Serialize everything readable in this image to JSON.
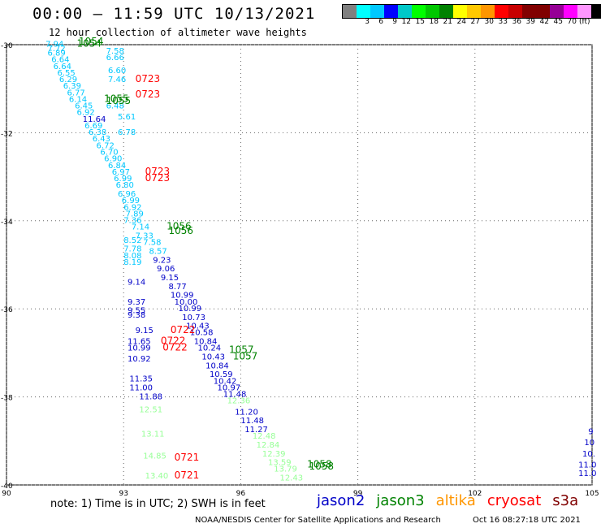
{
  "title": "00:00 – 11:59 UTC 10/13/2021",
  "subtitle": "12 hour collection of altimeter wave heights",
  "colorbar": {
    "colors": [
      "#808080",
      "#00ffff",
      "#00c8ff",
      "#0000ff",
      "#00c8c8",
      "#00ff00",
      "#00c800",
      "#008200",
      "#ffff00",
      "#ffc800",
      "#ff9600",
      "#ff0000",
      "#c80000",
      "#820000",
      "#800000",
      "#960096",
      "#ff00ff",
      "#ff96ff",
      "#000000"
    ],
    "labels": [
      "3",
      "6",
      "9",
      "12",
      "15",
      "18",
      "21",
      "24",
      "27",
      "30",
      "33",
      "36",
      "39",
      "42",
      "45",
      "70"
    ],
    "unit": "(ft)"
  },
  "axes": {
    "lat_labels": [
      "-30",
      "-32",
      "-34",
      "-36",
      "-38",
      "-40"
    ],
    "lon_labels": [
      "90",
      "93",
      "96",
      "99",
      "102",
      "105"
    ]
  },
  "legend": [
    {
      "name": "jason2",
      "color": "#0000c8"
    },
    {
      "name": "jason3",
      "color": "#008200"
    },
    {
      "name": "altika",
      "color": "#ff9600"
    },
    {
      "name": "cryosat",
      "color": "#ff0000"
    },
    {
      "name": "s3a",
      "color": "#800000"
    }
  ],
  "note": "note: 1) Time is in UTC; 2) SWH is in feet",
  "credit": "NOAA/NESDIS Center for Satellite Applications and Research",
  "timestamp": "Oct 16 08:27:18 UTC 2021",
  "times": [
    {
      "text": "1054",
      "color": "#008200",
      "lon": 91.8,
      "lat": -30.05
    },
    {
      "text": "1054",
      "color": "#008200",
      "lon": 91.85,
      "lat": -30.0
    },
    {
      "text": "0723",
      "color": "#ff0000",
      "lon": 93.3,
      "lat": -30.85
    },
    {
      "text": "0723",
      "color": "#ff0000",
      "lon": 93.3,
      "lat": -31.2
    },
    {
      "text": "1055",
      "color": "#008200",
      "lon": 92.5,
      "lat": -31.3
    },
    {
      "text": "1055",
      "color": "#008200",
      "lon": 92.55,
      "lat": -31.35
    },
    {
      "text": "0723",
      "color": "#ff0000",
      "lon": 93.55,
      "lat": -32.95
    },
    {
      "text": "0723",
      "color": "#ff0000",
      "lon": 93.55,
      "lat": -33.1
    },
    {
      "text": "1056",
      "color": "#008200",
      "lon": 94.1,
      "lat": -34.2
    },
    {
      "text": "1056",
      "color": "#008200",
      "lon": 94.15,
      "lat": -34.3
    },
    {
      "text": "0722",
      "color": "#ff0000",
      "lon": 94.2,
      "lat": -36.55
    },
    {
      "text": "0722",
      "color": "#ff0000",
      "lon": 93.95,
      "lat": -36.8
    },
    {
      "text": "0722",
      "color": "#ff0000",
      "lon": 94.0,
      "lat": -36.95
    },
    {
      "text": "1057",
      "color": "#008200",
      "lon": 95.7,
      "lat": -37.0
    },
    {
      "text": "1057",
      "color": "#008200",
      "lon": 95.8,
      "lat": -37.15
    },
    {
      "text": "0721",
      "color": "#ff0000",
      "lon": 94.3,
      "lat": -39.45
    },
    {
      "text": "0721",
      "color": "#ff0000",
      "lon": 94.3,
      "lat": -39.85
    },
    {
      "text": "1058",
      "color": "#008200",
      "lon": 97.7,
      "lat": -39.6
    },
    {
      "text": "1058",
      "color": "#008200",
      "lon": 97.75,
      "lat": -39.65
    }
  ],
  "values": [
    {
      "text": "7.94",
      "color": "#00c8ff",
      "lon": 91.0,
      "lat": -30.05
    },
    {
      "text": "7.72",
      "color": "#00c8ff",
      "lon": 91.05,
      "lat": -30.15
    },
    {
      "text": "6.89",
      "color": "#00c8ff",
      "lon": 91.05,
      "lat": -30.25
    },
    {
      "text": "6.64",
      "color": "#00c8ff",
      "lon": 91.15,
      "lat": -30.4
    },
    {
      "text": "6.64",
      "color": "#00c8ff",
      "lon": 91.2,
      "lat": -30.55
    },
    {
      "text": "6.55",
      "color": "#00c8ff",
      "lon": 91.3,
      "lat": -30.7
    },
    {
      "text": "6.29",
      "color": "#00c8ff",
      "lon": 91.35,
      "lat": -30.85
    },
    {
      "text": "6.39",
      "color": "#00c8ff",
      "lon": 91.45,
      "lat": -31.0
    },
    {
      "text": "6.77",
      "color": "#00c8ff",
      "lon": 91.55,
      "lat": -31.15
    },
    {
      "text": "6.14",
      "color": "#00c8ff",
      "lon": 91.6,
      "lat": -31.3
    },
    {
      "text": "6.45",
      "color": "#00c8ff",
      "lon": 91.75,
      "lat": -31.45
    },
    {
      "text": "6.92",
      "color": "#00c8ff",
      "lon": 91.8,
      "lat": -31.6
    },
    {
      "text": "11.64",
      "color": "#0000c8",
      "lon": 91.95,
      "lat": -31.75
    },
    {
      "text": "6.69",
      "color": "#00c8ff",
      "lon": 92.0,
      "lat": -31.9
    },
    {
      "text": "6.38",
      "color": "#00c8ff",
      "lon": 92.1,
      "lat": -32.05
    },
    {
      "text": "6.43",
      "color": "#00c8ff",
      "lon": 92.2,
      "lat": -32.2
    },
    {
      "text": "6.72",
      "color": "#00c8ff",
      "lon": 92.3,
      "lat": -32.35
    },
    {
      "text": "6.70",
      "color": "#00c8ff",
      "lon": 92.4,
      "lat": -32.5
    },
    {
      "text": "6.90",
      "color": "#00c8ff",
      "lon": 92.5,
      "lat": -32.65
    },
    {
      "text": "6.84",
      "color": "#00c8ff",
      "lon": 92.6,
      "lat": -32.8
    },
    {
      "text": "6.97",
      "color": "#00c8ff",
      "lon": 92.7,
      "lat": -32.95
    },
    {
      "text": "6.99",
      "color": "#00c8ff",
      "lon": 92.75,
      "lat": -33.1
    },
    {
      "text": "6.80",
      "color": "#00c8ff",
      "lon": 92.8,
      "lat": -33.25
    },
    {
      "text": "6.96",
      "color": "#00c8ff",
      "lon": 92.85,
      "lat": -33.45
    },
    {
      "text": "6.99",
      "color": "#00c8ff",
      "lon": 92.95,
      "lat": -33.6
    },
    {
      "text": "6.92",
      "color": "#00c8ff",
      "lon": 93.0,
      "lat": -33.75
    },
    {
      "text": "7.89",
      "color": "#00c8ff",
      "lon": 93.05,
      "lat": -33.9
    },
    {
      "text": "7.36",
      "color": "#00c8ff",
      "lon": 93.0,
      "lat": -34.05
    },
    {
      "text": "7.14",
      "color": "#00c8ff",
      "lon": 93.2,
      "lat": -34.2
    },
    {
      "text": "7.33",
      "color": "#00c8ff",
      "lon": 93.3,
      "lat": -34.4
    },
    {
      "text": "7.58",
      "color": "#00c8ff",
      "lon": 93.5,
      "lat": -34.55
    },
    {
      "text": "8.57",
      "color": "#00c8ff",
      "lon": 93.65,
      "lat": -34.75
    },
    {
      "text": "9.23",
      "color": "#0000c8",
      "lon": 93.75,
      "lat": -34.95
    },
    {
      "text": "9.06",
      "color": "#0000c8",
      "lon": 93.85,
      "lat": -35.15
    },
    {
      "text": "9.15",
      "color": "#0000c8",
      "lon": 93.95,
      "lat": -35.35
    },
    {
      "text": "8.77",
      "color": "#0000c8",
      "lon": 94.15,
      "lat": -35.55
    },
    {
      "text": "10.99",
      "color": "#0000c8",
      "lon": 94.2,
      "lat": -35.75
    },
    {
      "text": "10.00",
      "color": "#0000c8",
      "lon": 94.3,
      "lat": -35.9
    },
    {
      "text": "10.99",
      "color": "#0000c8",
      "lon": 94.4,
      "lat": -36.05
    },
    {
      "text": "10.73",
      "color": "#0000c8",
      "lon": 94.5,
      "lat": -36.25
    },
    {
      "text": "10.43",
      "color": "#0000c8",
      "lon": 94.6,
      "lat": -36.45
    },
    {
      "text": "10.58",
      "color": "#0000c8",
      "lon": 94.7,
      "lat": -36.6
    },
    {
      "text": "10.84",
      "color": "#0000c8",
      "lon": 94.8,
      "lat": -36.8
    },
    {
      "text": "10.24",
      "color": "#0000c8",
      "lon": 94.9,
      "lat": -36.95
    },
    {
      "text": "10.43",
      "color": "#0000c8",
      "lon": 95.0,
      "lat": -37.15
    },
    {
      "text": "10.84",
      "color": "#0000c8",
      "lon": 95.1,
      "lat": -37.35
    },
    {
      "text": "10.59",
      "color": "#0000c8",
      "lon": 95.2,
      "lat": -37.55
    },
    {
      "text": "10.42",
      "color": "#0000c8",
      "lon": 95.3,
      "lat": -37.7
    },
    {
      "text": "10.97",
      "color": "#0000c8",
      "lon": 95.4,
      "lat": -37.85
    },
    {
      "text": "11.48",
      "color": "#0000c8",
      "lon": 95.55,
      "lat": -38.0
    },
    {
      "text": "12.36",
      "color": "#96ff96",
      "lon": 95.65,
      "lat": -38.15
    },
    {
      "text": "11.20",
      "color": "#0000c8",
      "lon": 95.85,
      "lat": -38.4
    },
    {
      "text": "11.48",
      "color": "#0000c8",
      "lon": 96.0,
      "lat": -38.6
    },
    {
      "text": "11.27",
      "color": "#0000c8",
      "lon": 96.1,
      "lat": -38.8
    },
    {
      "text": "12.48",
      "color": "#96ff96",
      "lon": 96.3,
      "lat": -38.95
    },
    {
      "text": "12.84",
      "color": "#96ff96",
      "lon": 96.4,
      "lat": -39.15
    },
    {
      "text": "12.39",
      "color": "#96ff96",
      "lon": 96.55,
      "lat": -39.35
    },
    {
      "text": "13.59",
      "color": "#96ff96",
      "lon": 96.7,
      "lat": -39.55
    },
    {
      "text": "13.79",
      "color": "#96ff96",
      "lon": 96.85,
      "lat": -39.7
    },
    {
      "text": "12.43",
      "color": "#96ff96",
      "lon": 97.0,
      "lat": -39.9
    },
    {
      "text": "7.58",
      "color": "#00c8ff",
      "lon": 92.55,
      "lat": -30.2
    },
    {
      "text": "6.66",
      "color": "#00c8ff",
      "lon": 92.55,
      "lat": -30.35
    },
    {
      "text": "6.60",
      "color": "#00c8ff",
      "lon": 92.6,
      "lat": -30.65
    },
    {
      "text": "7.46",
      "color": "#00c8ff",
      "lon": 92.6,
      "lat": -30.85
    },
    {
      "text": "6.48",
      "color": "#00c8ff",
      "lon": 92.55,
      "lat": -31.45
    },
    {
      "text": "5.61",
      "color": "#00c8ff",
      "lon": 92.85,
      "lat": -31.7
    },
    {
      "text": "6.78",
      "color": "#00c8ff",
      "lon": 92.85,
      "lat": -32.05
    },
    {
      "text": "8.52",
      "color": "#00c8ff",
      "lon": 93.0,
      "lat": -34.5
    },
    {
      "text": "7.78",
      "color": "#00c8ff",
      "lon": 93.0,
      "lat": -34.7
    },
    {
      "text": "8.08",
      "color": "#00c8ff",
      "lon": 93.0,
      "lat": -34.85
    },
    {
      "text": "8.19",
      "color": "#00c8ff",
      "lon": 93.0,
      "lat": -35.0
    },
    {
      "text": "9.14",
      "color": "#0000c8",
      "lon": 93.1,
      "lat": -35.45
    },
    {
      "text": "9.37",
      "color": "#0000c8",
      "lon": 93.1,
      "lat": -35.9
    },
    {
      "text": "9.55",
      "color": "#0000c8",
      "lon": 93.1,
      "lat": -36.1
    },
    {
      "text": "9.38",
      "color": "#0000c8",
      "lon": 93.1,
      "lat": -36.2
    },
    {
      "text": "9.15",
      "color": "#0000c8",
      "lon": 93.3,
      "lat": -36.55
    },
    {
      "text": "11.65",
      "color": "#0000c8",
      "lon": 93.1,
      "lat": -36.8
    },
    {
      "text": "10.99",
      "color": "#0000c8",
      "lon": 93.1,
      "lat": -36.95
    },
    {
      "text": "10.92",
      "color": "#0000c8",
      "lon": 93.1,
      "lat": -37.2
    },
    {
      "text": "11.35",
      "color": "#0000c8",
      "lon": 93.15,
      "lat": -37.65
    },
    {
      "text": "11.00",
      "color": "#0000c8",
      "lon": 93.15,
      "lat": -37.85
    },
    {
      "text": "11.88",
      "color": "#0000c8",
      "lon": 93.4,
      "lat": -38.05
    },
    {
      "text": "12.51",
      "color": "#96ff96",
      "lon": 93.4,
      "lat": -38.35
    },
    {
      "text": "13.11",
      "color": "#96ff96",
      "lon": 93.45,
      "lat": -38.9
    },
    {
      "text": "14.85",
      "color": "#96ff96",
      "lon": 93.5,
      "lat": -39.4
    },
    {
      "text": "13.40",
      "color": "#96ff96",
      "lon": 93.55,
      "lat": -39.85
    },
    {
      "text": "9",
      "color": "#0000c8",
      "lon": 104.9,
      "lat": -38.85
    },
    {
      "text": "10",
      "color": "#0000c8",
      "lon": 104.8,
      "lat": -39.1
    },
    {
      "text": "10.",
      "color": "#0000c8",
      "lon": 104.75,
      "lat": -39.35
    },
    {
      "text": "11.0",
      "color": "#0000c8",
      "lon": 104.65,
      "lat": -39.6
    },
    {
      "text": "11.0",
      "color": "#0000c8",
      "lon": 104.65,
      "lat": -39.8
    }
  ]
}
